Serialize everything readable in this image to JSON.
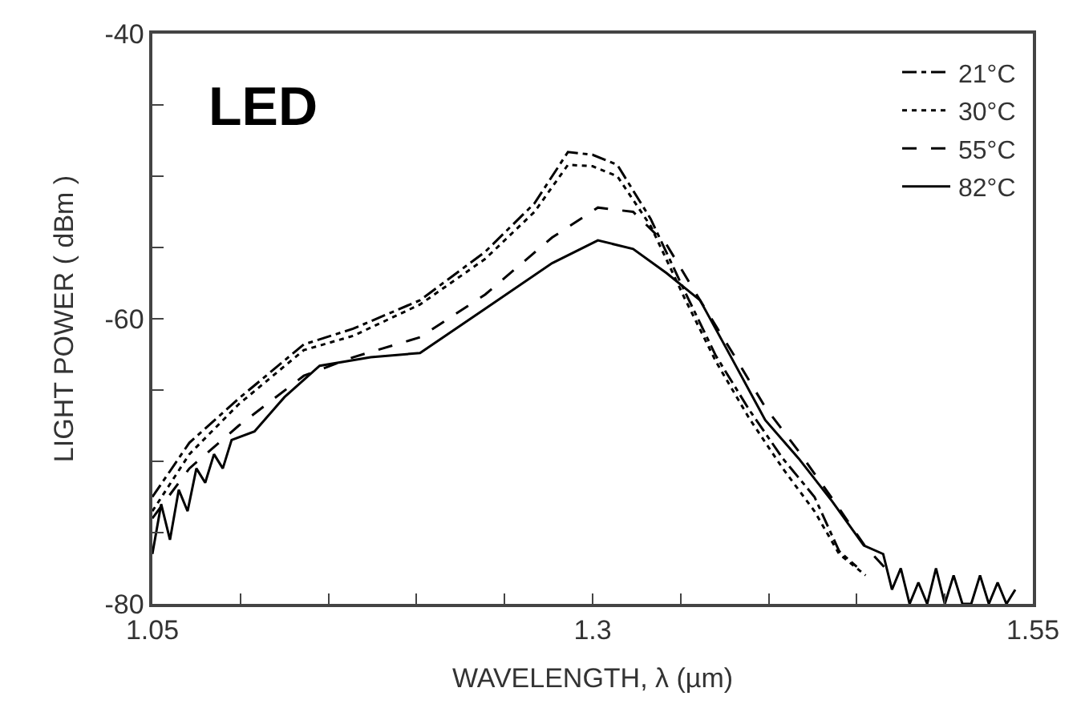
{
  "chart_data": {
    "type": "line",
    "xlabel": "WAVELENGTH, λ (µm)",
    "ylabel": "LIGHT POWER ( dBm )",
    "annotations": [
      "LED"
    ],
    "xlim": [
      1.05,
      1.55
    ],
    "ylim": [
      -80,
      -40
    ],
    "xticks": [
      1.05,
      {
        "value": 1.1,
        "label": null
      },
      {
        "value": 1.15,
        "label": null
      },
      {
        "value": 1.2,
        "label": null
      },
      {
        "value": 1.25,
        "label": null
      },
      1.3,
      {
        "value": 1.35,
        "label": null
      },
      {
        "value": 1.4,
        "label": null
      },
      {
        "value": 1.45,
        "label": null
      },
      {
        "value": 1.5,
        "label": null
      },
      1.55
    ],
    "yticks": [
      -80,
      {
        "value": -75,
        "label": null
      },
      {
        "value": -70,
        "label": null
      },
      {
        "value": -65,
        "label": null
      },
      -60,
      {
        "value": -55,
        "label": null
      },
      {
        "value": -50,
        "label": null
      },
      {
        "value": -45,
        "label": null
      },
      -40
    ],
    "legend": "top right",
    "marker": "none",
    "series": [
      {
        "name": "21°C",
        "color": "#000000",
        "line_style": "dashdot",
        "x": [
          1.05,
          1.071,
          1.099,
          1.136,
          1.164,
          1.202,
          1.239,
          1.267,
          1.286,
          1.3,
          1.314,
          1.333,
          1.352,
          1.37,
          1.389,
          1.408,
          1.426,
          1.44,
          1.45
        ],
        "values": [
          -72.5,
          -68.7,
          -65.6,
          -61.8,
          -60.7,
          -58.7,
          -55.3,
          -51.9,
          -48.3,
          -48.5,
          -49.2,
          -53,
          -58,
          -62.6,
          -66.4,
          -69.8,
          -72.5,
          -76.3,
          -77.4
        ]
      },
      {
        "name": "30°C",
        "color": "#000000",
        "line_style": "dotted",
        "x": [
          1.05,
          1.071,
          1.099,
          1.136,
          1.164,
          1.202,
          1.239,
          1.267,
          1.286,
          1.3,
          1.314,
          1.333,
          1.352,
          1.37,
          1.389,
          1.408,
          1.426,
          1.44,
          1.455
        ],
        "values": [
          -73.5,
          -69.5,
          -66,
          -62.2,
          -61.2,
          -59,
          -55.8,
          -52.5,
          -49.2,
          -49.3,
          -50,
          -53.5,
          -58.5,
          -63,
          -67,
          -70.5,
          -73.5,
          -76.5,
          -78
        ]
      },
      {
        "name": "55°C",
        "color": "#000000",
        "line_style": "dashed",
        "x": [
          1.05,
          1.071,
          1.099,
          1.136,
          1.164,
          1.202,
          1.239,
          1.277,
          1.303,
          1.323,
          1.342,
          1.361,
          1.38,
          1.398,
          1.417,
          1.436,
          1.455,
          1.47
        ],
        "values": [
          -74,
          -70.5,
          -67.5,
          -64,
          -62.7,
          -61.3,
          -58.3,
          -54.3,
          -52.2,
          -52.5,
          -54.8,
          -58.7,
          -62.5,
          -66.2,
          -69.3,
          -72.6,
          -76,
          -78
        ]
      },
      {
        "name": "82°C",
        "color": "#000000",
        "line_style": "solid",
        "x": [
          1.05,
          1.055,
          1.06,
          1.065,
          1.07,
          1.075,
          1.08,
          1.085,
          1.09,
          1.095,
          1.108,
          1.125,
          1.145,
          1.174,
          1.202,
          1.239,
          1.277,
          1.303,
          1.323,
          1.342,
          1.361,
          1.38,
          1.398,
          1.417,
          1.436,
          1.454,
          1.465,
          1.47,
          1.475,
          1.48,
          1.485,
          1.49,
          1.495,
          1.5,
          1.505,
          1.51,
          1.515,
          1.52,
          1.525,
          1.53,
          1.535,
          1.54
        ],
        "values": [
          -76.5,
          -73,
          -75.5,
          -72,
          -73.5,
          -70.5,
          -71.5,
          -69.5,
          -70.5,
          -68.5,
          -67.9,
          -65.5,
          -63.3,
          -62.7,
          -62.4,
          -59.3,
          -56.1,
          -54.5,
          -55.1,
          -56.8,
          -58.7,
          -63,
          -67.1,
          -69.8,
          -72.8,
          -75.9,
          -76.5,
          -79,
          -77.5,
          -80,
          -78.5,
          -80,
          -77.5,
          -80,
          -78,
          -80,
          -80,
          -78,
          -80,
          -78.5,
          -80,
          -79
        ]
      }
    ]
  }
}
